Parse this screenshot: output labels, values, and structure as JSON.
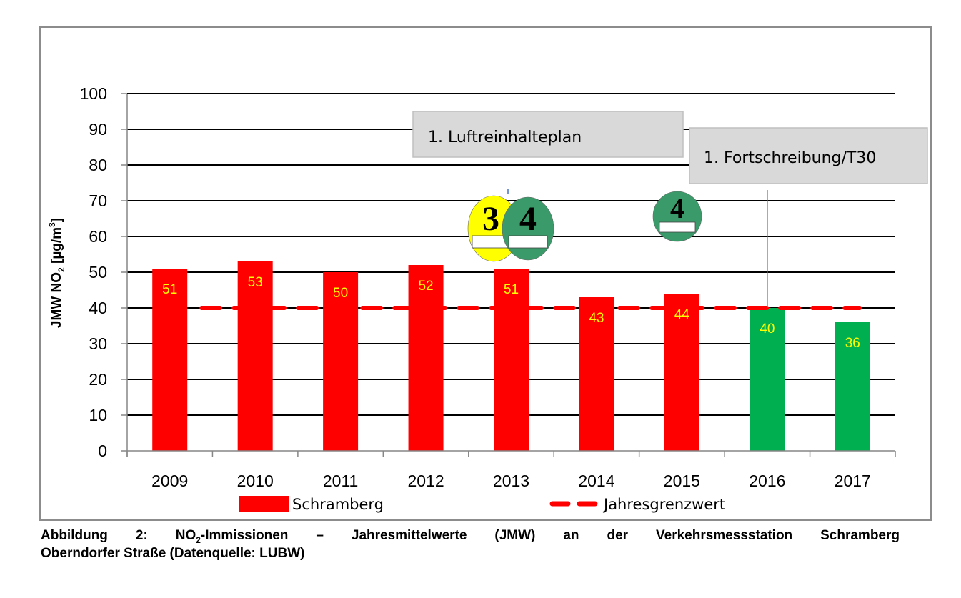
{
  "chart_data": {
    "type": "bar",
    "title": "",
    "xlabel": "",
    "ylabel": "JMW NO2 [µg/m³]",
    "ylabel_parts": {
      "main": "JMW NO",
      "sub": "2",
      "unit": " [µg/m",
      "sup": "3",
      "close": "]"
    },
    "ylim": [
      0,
      100
    ],
    "yticks": [
      "0",
      "10",
      "20",
      "30",
      "40",
      "50",
      "60",
      "70",
      "80",
      "90",
      "100"
    ],
    "ytick_values": [
      0,
      10,
      20,
      30,
      40,
      50,
      60,
      70,
      80,
      90,
      100
    ],
    "grid": true,
    "categories": [
      "2009",
      "2010",
      "2011",
      "2012",
      "2013",
      "2014",
      "2015",
      "2016",
      "2017"
    ],
    "series": [
      {
        "name": "Schramberg",
        "type": "bar",
        "values": [
          51,
          53,
          50,
          52,
          51,
          43,
          44,
          40,
          36
        ],
        "colors": [
          "#ff0000",
          "#ff0000",
          "#ff0000",
          "#ff0000",
          "#ff0000",
          "#ff0000",
          "#ff0000",
          "#00b050",
          "#00b050"
        ],
        "labels": [
          "51",
          "53",
          "50",
          "52",
          "51",
          "43",
          "44",
          "40",
          "36"
        ],
        "label_color": "#ffff00"
      },
      {
        "name": "Jahresgrenzwert",
        "type": "line",
        "style": "dashed",
        "color": "#ff0000",
        "value": 40
      }
    ],
    "legend": {
      "position": "bottom",
      "items": [
        {
          "label": "Schramberg",
          "type": "bar",
          "color": "#ff0000"
        },
        {
          "label": "Jahresgrenzwert",
          "type": "dashed-line",
          "color": "#ff0000"
        }
      ]
    },
    "annotations": [
      {
        "text": "1. Luftreinhalteplan",
        "anchor_category": "2013",
        "box_color": "#d9d9d9"
      },
      {
        "text": "1. Fortschreibung/T30",
        "anchor_category": "2016",
        "box_color": "#d9d9d9",
        "line_color": "#4472c4"
      }
    ],
    "badges": [
      {
        "label": "3",
        "color": "#ffff00",
        "anchor_category": "2013",
        "name": "yellow-emission-sticker"
      },
      {
        "label": "4",
        "color": "#3a9a6a",
        "anchor_category": "2013",
        "name": "green-emission-sticker"
      },
      {
        "label": "4",
        "color": "#3a9a6a",
        "anchor_category": "2015",
        "name": "green-emission-sticker"
      }
    ]
  },
  "caption": {
    "line1_a": "Abbildung 2: NO",
    "line1_sub": "2",
    "line1_b": "-Immissionen – Jahresmittelwerte (JMW) an der Verkehrsmessstation Schramberg",
    "line2": "Oberndorfer Straße (Datenquelle: LUBW)"
  }
}
